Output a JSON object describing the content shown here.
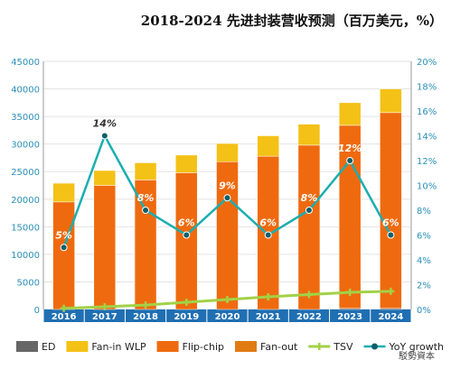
{
  "header": {
    "title": "2018-2024 先进封装营收预测（百万美元，%）"
  },
  "watermark": "駁勢資本",
  "chart_data": {
    "type": "bar",
    "title": "2018-2024 先进封装营收预测（百万美元，%）",
    "categories": [
      "2016",
      "2017",
      "2018",
      "2019",
      "2020",
      "2021",
      "2022",
      "2023",
      "2024"
    ],
    "stacked_series": [
      {
        "name": "ED",
        "color": "#666666",
        "values": [
          0,
          0,
          0,
          0,
          0,
          0,
          0,
          200,
          200
        ]
      },
      {
        "name": "Fan-out",
        "color": "#e07b12",
        "values": [
          0,
          0,
          0,
          0,
          0,
          0,
          0,
          0,
          0
        ]
      },
      {
        "name": "Flip-chip",
        "color": "#ef6a0f",
        "values": [
          19500,
          22500,
          23500,
          24800,
          26800,
          27800,
          29800,
          33200,
          35500
        ]
      },
      {
        "name": "Fan-in WLP",
        "color": "#f4c116",
        "values": [
          3400,
          2700,
          3100,
          3200,
          3300,
          3700,
          3800,
          4100,
          4300
        ]
      }
    ],
    "line_series": [
      {
        "name": "TSV",
        "color": "#a2d147",
        "axis": "left",
        "marker": "cross",
        "values": [
          200,
          500,
          800,
          1300,
          1800,
          2300,
          2700,
          3100,
          3300
        ]
      },
      {
        "name": "YoY growth",
        "color": "#1aaeb0",
        "axis": "right",
        "marker": "dot",
        "values": [
          5,
          14,
          8,
          6,
          9,
          6,
          8,
          12,
          6
        ],
        "labels": [
          "5%",
          "14%",
          "8%",
          "6%",
          "9%",
          "6%",
          "8%",
          "12%",
          "6%"
        ]
      }
    ],
    "y_left": {
      "min": 0,
      "max": 45000,
      "ticks": [
        "0",
        "5000",
        "10000",
        "15000",
        "20000",
        "25000",
        "30000",
        "35000",
        "40000",
        "45000"
      ]
    },
    "y_right": {
      "min": 0,
      "max": 20,
      "ticks": [
        "0%",
        "2%",
        "4%",
        "6%",
        "8%",
        "10%",
        "12%",
        "14%",
        "16%",
        "18%",
        "20%"
      ]
    },
    "grid": true,
    "legend": {
      "position": "bottom",
      "items": [
        "ED",
        "Fan-in WLP",
        "Flip-chip",
        "Fan-out",
        "TSV",
        "YoY growth"
      ]
    }
  }
}
